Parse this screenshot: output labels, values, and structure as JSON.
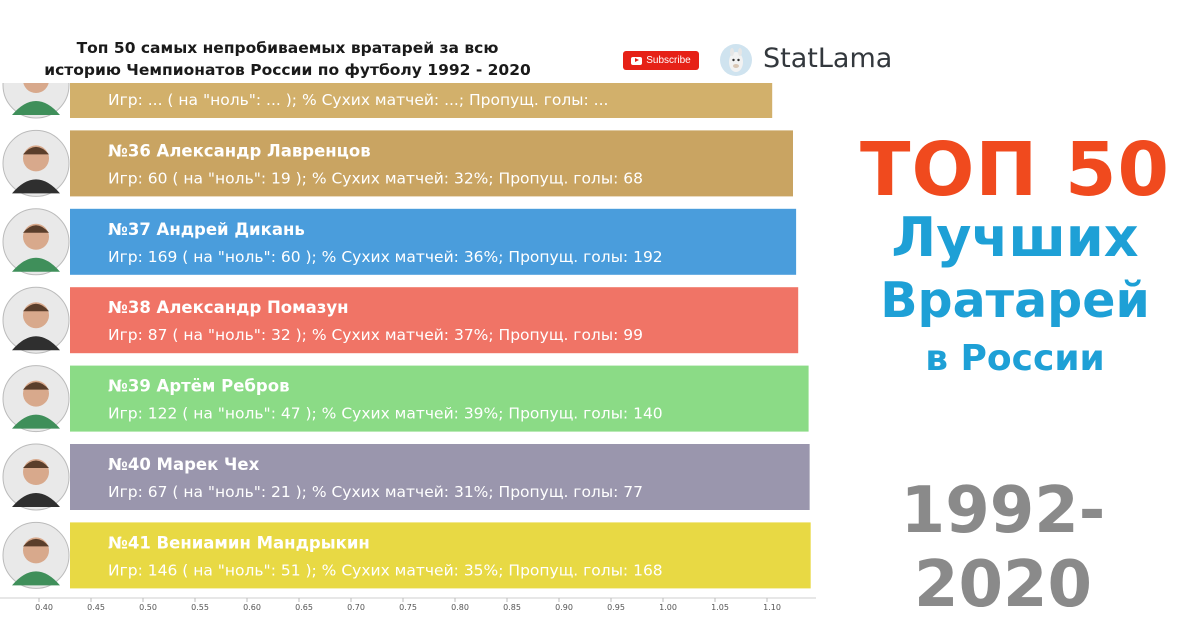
{
  "header": {
    "title": "Топ 50 самых непробиваемых вратарей за всю\nисторию Чемпионатов России по футболу 1992 - 2020",
    "subscribe_label": "Subscribe",
    "brand_name": "StatLama"
  },
  "right_panel": {
    "line1": "ТОП 50",
    "line2": "Лучших",
    "line3": "Вратарей",
    "line4": "в России",
    "years": "1992-2020"
  },
  "colors": {
    "bar_35": "#d2b06b",
    "bar_36": "#c9a462",
    "bar_37": "#4a9ddc",
    "bar_38": "#f07466",
    "bar_39": "#8bdb86",
    "bar_40": "#9a96ad",
    "bar_41": "#e8d944"
  },
  "chart_data": {
    "type": "bar",
    "orientation": "horizontal",
    "xlim": [
      0.35,
      1.15
    ],
    "x_ticks": [
      "0.40",
      "0.45",
      "0.50",
      "0.55",
      "0.60",
      "0.65",
      "0.70",
      "0.75",
      "0.80",
      "0.85",
      "0.90",
      "0.95",
      "1.00",
      "1.05",
      "1.10"
    ],
    "bars": [
      {
        "rank": null,
        "title": "",
        "subtitle": "Игр: ... ( на \"ноль\": ... ); % Сухих матчей: ...; Пропущ. голы: ...",
        "value": 1.105,
        "color": "#d2b06b",
        "partial": true
      },
      {
        "rank": 36,
        "title": "№36 Александр Лавренцов",
        "subtitle": "Игр: 60 ( на \"ноль\": 19 ); % Сухих матчей: 32%; Пропущ. голы: 68",
        "value": 1.125,
        "color": "#c9a462"
      },
      {
        "rank": 37,
        "title": "№37 Андрей Дикань",
        "subtitle": "Игр: 169 ( на \"ноль\": 60 ); % Сухих матчей: 36%; Пропущ. голы: 192",
        "value": 1.128,
        "color": "#4a9ddc"
      },
      {
        "rank": 38,
        "title": "№38 Александр Помазун",
        "subtitle": "Игр: 87 ( на \"ноль\": 32 ); % Сухих матчей: 37%; Пропущ. голы: 99",
        "value": 1.13,
        "color": "#f07466"
      },
      {
        "rank": 39,
        "title": "№39 Артём Ребров",
        "subtitle": "Игр: 122 ( на \"ноль\": 47 ); % Сухих матчей: 39%; Пропущ. голы: 140",
        "value": 1.14,
        "color": "#8bdb86"
      },
      {
        "rank": 40,
        "title": "№40 Марек Чех",
        "subtitle": "Игр: 67 ( на \"ноль\": 21 ); % Сухих матчей: 31%; Пропущ. голы: 77",
        "value": 1.141,
        "color": "#9a96ad"
      },
      {
        "rank": 41,
        "title": "№41 Вениамин Мандрыкин",
        "subtitle": "Игр: 146 ( на \"ноль\": 51 ); % Сухих матчей: 35%; Пропущ. голы: 168",
        "value": 1.142,
        "color": "#e8d944"
      }
    ]
  }
}
